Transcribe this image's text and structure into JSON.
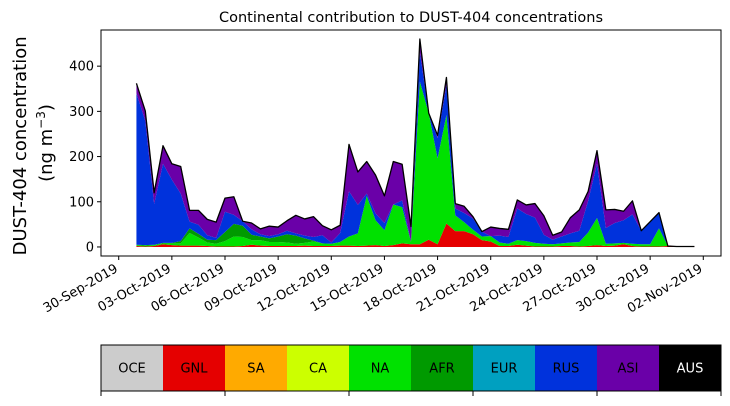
{
  "chart_data": {
    "type": "area",
    "title": "Continental contribution to DUST-404 concentrations",
    "ylabel_line1": "DUST-404 concentration",
    "ylabel_line2_prefix": "(ng m",
    "ylabel_line2_sup": "−3",
    "ylabel_line2_suffix": ")",
    "xlabel": "",
    "xlim": [
      "2019-09-29",
      "2019-11-03"
    ],
    "ylim": [
      -20,
      480
    ],
    "yticks": [
      0,
      100,
      200,
      300,
      400
    ],
    "xticks": [
      "30-Sep-2019",
      "03-Oct-2019",
      "06-Oct-2019",
      "09-Oct-2019",
      "12-Oct-2019",
      "15-Oct-2019",
      "18-Oct-2019",
      "21-Oct-2019",
      "24-Oct-2019",
      "27-Oct-2019",
      "30-Oct-2019",
      "02-Nov-2019"
    ],
    "x": [
      "2019-10-01",
      "2019-10-01",
      "2019-10-02",
      "2019-10-02",
      "2019-10-03",
      "2019-10-03",
      "2019-10-04",
      "2019-10-04",
      "2019-10-05",
      "2019-10-05",
      "2019-10-06",
      "2019-10-06",
      "2019-10-07",
      "2019-10-07",
      "2019-10-08",
      "2019-10-08",
      "2019-10-09",
      "2019-10-09",
      "2019-10-10",
      "2019-10-10",
      "2019-10-11",
      "2019-10-11",
      "2019-10-12",
      "2019-10-12",
      "2019-10-13",
      "2019-10-13",
      "2019-10-14",
      "2019-10-14",
      "2019-10-15",
      "2019-10-15",
      "2019-10-16",
      "2019-10-16",
      "2019-10-17",
      "2019-10-17",
      "2019-10-18",
      "2019-10-18",
      "2019-10-19",
      "2019-10-19",
      "2019-10-20",
      "2019-10-20",
      "2019-10-21",
      "2019-10-21",
      "2019-10-22",
      "2019-10-22",
      "2019-10-23",
      "2019-10-23",
      "2019-10-24",
      "2019-10-24",
      "2019-10-25",
      "2019-10-25",
      "2019-10-26",
      "2019-10-26",
      "2019-10-27",
      "2019-10-27",
      "2019-10-28",
      "2019-10-28",
      "2019-10-29",
      "2019-10-29",
      "2019-10-30",
      "2019-10-30",
      "2019-10-31",
      "2019-10-31",
      "2019-11-01",
      "2019-11-01"
    ],
    "x_hours": [
      0,
      12,
      0,
      12,
      0,
      12,
      0,
      12,
      0,
      12,
      0,
      12,
      0,
      12,
      0,
      12,
      0,
      12,
      0,
      12,
      0,
      12,
      0,
      12,
      0,
      12,
      0,
      12,
      0,
      12,
      0,
      12,
      0,
      12,
      0,
      12,
      0,
      12,
      0,
      12,
      0,
      12,
      0,
      12,
      0,
      12,
      0,
      12,
      0,
      12,
      0,
      12,
      0,
      12,
      0,
      12,
      0,
      12,
      0,
      12,
      0,
      12,
      0,
      12
    ],
    "series": [
      {
        "name": "OCE",
        "color": "#cccccc",
        "values": [
          0,
          0,
          0,
          0,
          0,
          0,
          0,
          0,
          0,
          0,
          0,
          0,
          0,
          0,
          0,
          0,
          0,
          0,
          0,
          0,
          0,
          0,
          0,
          0,
          0,
          0,
          0,
          0,
          0,
          0,
          0,
          0,
          0,
          0,
          0,
          0,
          0,
          0,
          0,
          0,
          0,
          0,
          0,
          0,
          0,
          0,
          0,
          0,
          0,
          0,
          0,
          0,
          0,
          0,
          0,
          0,
          0,
          0,
          0,
          0,
          0,
          0,
          0,
          0
        ]
      },
      {
        "name": "GNL",
        "color": "#e50000",
        "values": [
          2,
          1,
          2,
          6,
          4,
          3,
          3,
          3,
          2,
          1,
          1,
          1,
          2,
          5,
          3,
          2,
          2,
          2,
          2,
          3,
          2,
          2,
          2,
          3,
          3,
          2,
          3,
          4,
          2,
          4,
          8,
          6,
          6,
          16,
          6,
          52,
          35,
          35,
          28,
          15,
          12,
          2,
          2,
          5,
          3,
          1,
          1,
          1,
          2,
          2,
          1,
          2,
          4,
          2,
          3,
          6,
          2,
          1,
          1,
          1,
          2,
          1,
          1,
          1
        ]
      },
      {
        "name": "SA",
        "color": "#ffaa00",
        "values": [
          0,
          0,
          0,
          0,
          0,
          0,
          0,
          0,
          0,
          0,
          0,
          0,
          0,
          0,
          0,
          0,
          0,
          0,
          0,
          0,
          0,
          0,
          0,
          0,
          0,
          0,
          0,
          0,
          0,
          0,
          0,
          0,
          0,
          0,
          0,
          0,
          0,
          0,
          0,
          0,
          0,
          0,
          0,
          0,
          0,
          0,
          0,
          0,
          0,
          0,
          0,
          0,
          0,
          0,
          0,
          0,
          0,
          0,
          0,
          0,
          0,
          0,
          0,
          0
        ]
      },
      {
        "name": "CA",
        "color": "#ccff00",
        "values": [
          0,
          0,
          0,
          0,
          0,
          0,
          0,
          0,
          0,
          0,
          0,
          0,
          0,
          0,
          0,
          0,
          0,
          0,
          0,
          0,
          0,
          0,
          0,
          0,
          0,
          0,
          0,
          0,
          0,
          0,
          0,
          0,
          0,
          0,
          0,
          0,
          0,
          0,
          0,
          0,
          0,
          0,
          0,
          0,
          0,
          0,
          0,
          0,
          0,
          0,
          0,
          0,
          0,
          0,
          0,
          0,
          0,
          0,
          0,
          0,
          0,
          0,
          0,
          0
        ]
      },
      {
        "name": "NA",
        "color": "#00e100",
        "values": [
          2,
          2,
          2,
          2,
          4,
          5,
          28,
          18,
          8,
          6,
          12,
          22,
          20,
          10,
          12,
          9,
          9,
          8,
          5,
          6,
          10,
          6,
          5,
          8,
          20,
          28,
          110,
          55,
          35,
          90,
          80,
          5,
          360,
          280,
          190,
          240,
          35,
          20,
          10,
          8,
          12,
          8,
          5,
          10,
          10,
          8,
          6,
          5,
          6,
          8,
          10,
          30,
          60,
          5,
          5,
          3,
          5,
          5,
          5,
          40,
          0,
          0,
          0,
          0
        ]
      },
      {
        "name": "AFR",
        "color": "#009a00",
        "values": [
          1,
          1,
          1,
          1,
          1,
          5,
          10,
          8,
          6,
          8,
          20,
          28,
          25,
          12,
          8,
          8,
          12,
          18,
          18,
          10,
          2,
          0,
          0,
          0,
          0,
          0,
          0,
          0,
          0,
          0,
          0,
          0,
          0,
          0,
          0,
          0,
          0,
          0,
          0,
          0,
          0,
          0,
          0,
          0,
          0,
          0,
          0,
          0,
          0,
          0,
          0,
          0,
          0,
          0,
          0,
          0,
          0,
          0,
          0,
          0,
          0,
          0,
          0,
          0
        ]
      },
      {
        "name": "EUR",
        "color": "#00a0c0",
        "values": [
          0,
          0,
          0,
          0,
          0,
          0,
          0,
          0,
          0,
          0,
          0,
          0,
          0,
          0,
          0,
          0,
          0,
          0,
          0,
          0,
          0,
          0,
          0,
          0,
          0,
          0,
          0,
          0,
          0,
          0,
          0,
          0,
          0,
          0,
          0,
          0,
          0,
          0,
          0,
          0,
          0,
          0,
          0,
          0,
          0,
          0,
          0,
          0,
          0,
          0,
          0,
          0,
          0,
          0,
          0,
          0,
          0,
          0,
          0,
          0,
          0,
          0,
          0,
          0
        ]
      },
      {
        "name": "RUS",
        "color": "#0032dc",
        "values": [
          335,
          275,
          90,
          175,
          140,
          105,
          15,
          20,
          10,
          5,
          45,
          20,
          10,
          12,
          5,
          5,
          5,
          8,
          5,
          6,
          8,
          18,
          3,
          20,
          100,
          63,
          5,
          15,
          16,
          0,
          15,
          0,
          65,
          0,
          45,
          66,
          15,
          20,
          25,
          11,
          0,
          15,
          15,
          70,
          60,
          56,
          20,
          10,
          15,
          20,
          25,
          70,
          120,
          35,
          45,
          50,
          65,
          30,
          50,
          35,
          0,
          0,
          0,
          0
        ]
      },
      {
        "name": "ASI",
        "color": "#6a00a8",
        "values": [
          22,
          22,
          25,
          40,
          35,
          60,
          25,
          32,
          35,
          35,
          30,
          40,
          0,
          14,
          12,
          22,
          16,
          22,
          40,
          37,
          45,
          21,
          28,
          17,
          104,
          73,
          71,
          85,
          60,
          95,
          80,
          34,
          29,
          0,
          6,
          17,
          11,
          15,
          4,
          0,
          20,
          16,
          17,
          19,
          20,
          31,
          42,
          10,
          10,
          35,
          46,
          21,
          29,
          40,
          30,
          20,
          30,
          0,
          0,
          0,
          0,
          0,
          0,
          0
        ]
      },
      {
        "name": "AUS",
        "color": "#000000",
        "values": [
          0,
          0,
          0,
          0,
          0,
          0,
          0,
          0,
          0,
          0,
          0,
          0,
          0,
          0,
          0,
          0,
          0,
          0,
          0,
          0,
          0,
          0,
          0,
          0,
          0,
          0,
          0,
          0,
          0,
          0,
          0,
          0,
          0,
          0,
          0,
          0,
          0,
          0,
          0,
          0,
          0,
          0,
          0,
          0,
          0,
          0,
          0,
          0,
          0,
          0,
          0,
          0,
          0,
          0,
          0,
          0,
          0,
          0,
          0,
          0,
          0,
          0,
          0,
          0
        ]
      }
    ],
    "legend": {
      "placement": "bottom",
      "labels": [
        "OCE",
        "GNL",
        "SA",
        "CA",
        "NA",
        "AFR",
        "EUR",
        "RUS",
        "ASI",
        "AUS"
      ],
      "colors": [
        "#cccccc",
        "#e50000",
        "#ffaa00",
        "#ccff00",
        "#00e100",
        "#009a00",
        "#00a0c0",
        "#0032dc",
        "#6a00a8",
        "#000000"
      ],
      "text_colors": [
        "#000000",
        "#000000",
        "#000000",
        "#000000",
        "#000000",
        "#000000",
        "#000000",
        "#000000",
        "#000000",
        "#ffffff"
      ]
    }
  }
}
